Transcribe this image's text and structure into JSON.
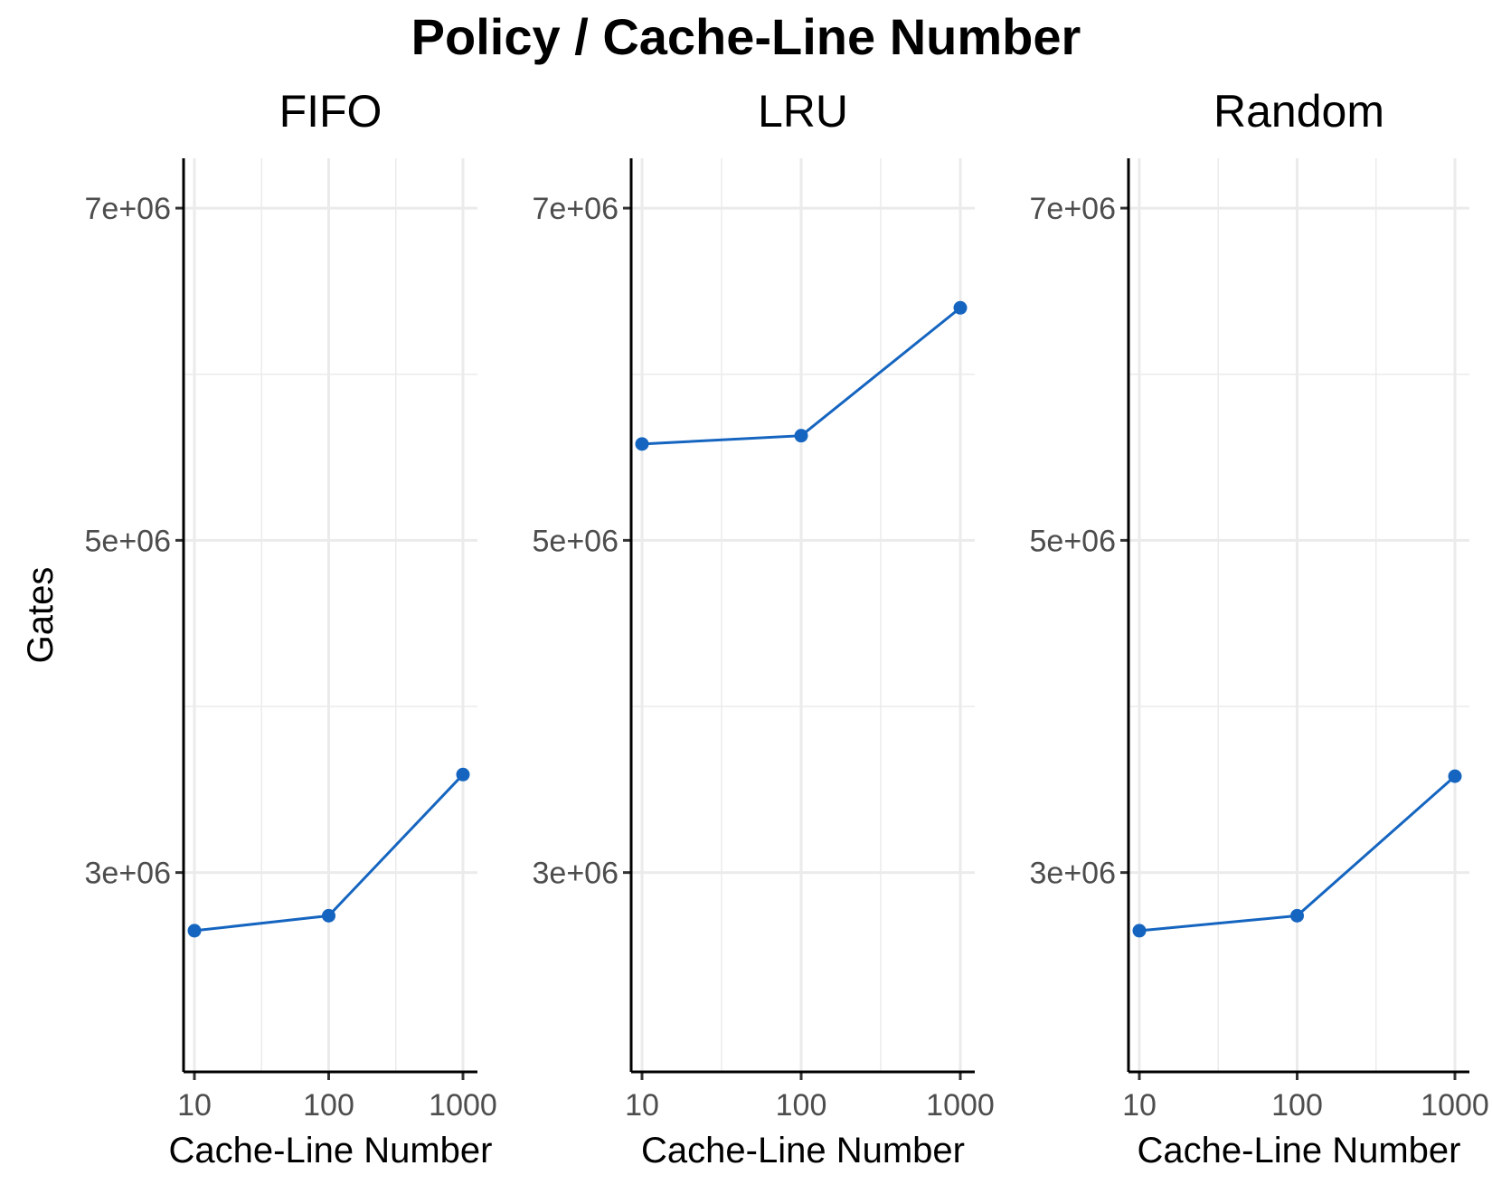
{
  "chart_data": {
    "type": "line",
    "title": "Policy / Cache-Line Number",
    "xlabel": "Cache-Line Number",
    "ylabel": "Gates",
    "x_scale": "log10",
    "x_ticks": [
      "10",
      "100",
      "1000"
    ],
    "y_ticks": [
      "3e+06",
      "5e+06",
      "7e+06"
    ],
    "ylim": [
      1800000,
      7300000
    ],
    "grid": true,
    "line_color": "#1565c0",
    "panels": [
      {
        "facet": "FIFO",
        "x": [
          10,
          100,
          1000
        ],
        "y": [
          2650000,
          2740000,
          3590000
        ]
      },
      {
        "facet": "LRU",
        "x": [
          10,
          100,
          1000
        ],
        "y": [
          5580000,
          5630000,
          6400000
        ]
      },
      {
        "facet": "Random",
        "x": [
          10,
          100,
          1000
        ],
        "y": [
          2650000,
          2740000,
          3580000
        ]
      }
    ]
  }
}
